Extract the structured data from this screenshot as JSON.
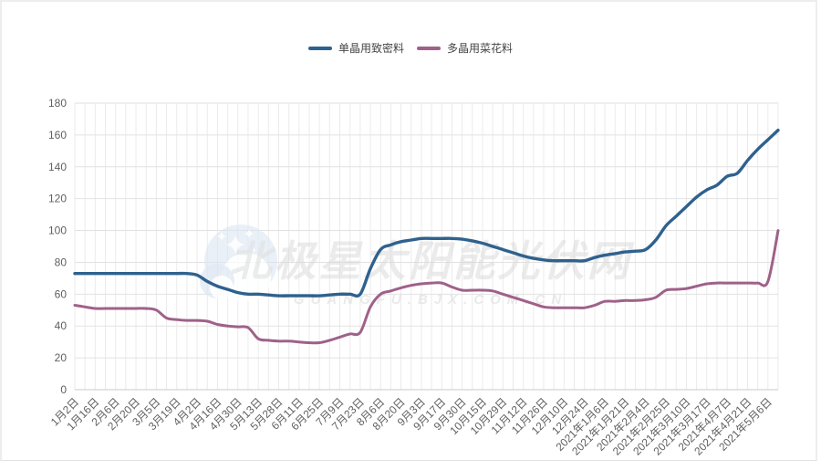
{
  "page": {
    "background": "#ffffff",
    "card_border_color": "#ededed"
  },
  "legend": [
    {
      "label": "单晶用致密料",
      "color": "#2f618e"
    },
    {
      "label": "多晶用菜花料",
      "color": "#9f6189"
    }
  ],
  "watermark": {
    "logo": "polar-star-cloud-logo",
    "title": "北极星太阳能光伏网",
    "subtitle": "GUANGFU.BJX.COM.CN",
    "color": "#d9d9d9",
    "logo_color": "#dbe5f1"
  },
  "axis": {
    "label_color": "#5f5f5f",
    "grid_color": "#e7e7e7",
    "axis_line_color": "#c9c9c9"
  },
  "chart_data": {
    "type": "line",
    "title": "",
    "xlabel": "",
    "ylabel": "",
    "ylim": [
      0,
      180
    ],
    "y_ticks": [
      0,
      20,
      40,
      60,
      80,
      100,
      120,
      140,
      160,
      180
    ],
    "grid": true,
    "legend_position": "top-center",
    "smooth": true,
    "label_every": 2,
    "x_tick_labels": [
      "1月2日",
      "1月16日",
      "2月6日",
      "2月20日",
      "3月5日",
      "3月19日",
      "4月2日",
      "4月16日",
      "4月30日",
      "5月13日",
      "5月28日",
      "6月11日",
      "6月25日",
      "7月9日",
      "7月23日",
      "8月6日",
      "8月20日",
      "9月3日",
      "9月17日",
      "9月30日",
      "10月15日",
      "10月29日",
      "11月12日",
      "11月26日",
      "12月10日",
      "12月24日",
      "2021年1月6日",
      "2021年1月21日",
      "2021年2月4日",
      "2021年2月25日",
      "2021年3月10日",
      "2021年3月17日",
      "2021年4月7日",
      "2021年4月21日",
      "2021年5月6日"
    ],
    "series": [
      {
        "name": "单晶用致密料",
        "color": "#2f618e",
        "values": [
          73,
          73,
          73,
          73,
          73,
          73,
          73,
          73,
          73,
          73,
          73,
          73,
          72,
          68,
          65,
          63,
          61,
          60,
          60,
          59.5,
          59,
          59,
          59,
          59,
          59,
          59.5,
          60,
          60,
          60,
          76,
          88,
          91,
          93,
          94,
          95,
          95,
          95,
          95,
          94.5,
          93.5,
          92,
          90,
          88,
          86,
          84,
          82.5,
          81.5,
          81,
          81,
          81,
          81,
          83,
          84.5,
          85.5,
          86.5,
          87,
          88,
          94,
          103,
          109,
          115,
          121,
          125.5,
          128.5,
          134,
          136,
          144,
          151,
          157,
          163
        ]
      },
      {
        "name": "多晶用菜花料",
        "color": "#9f6189",
        "values": [
          53,
          52,
          51,
          51,
          51,
          51,
          51,
          51,
          50,
          45,
          44,
          43.5,
          43.5,
          43,
          41,
          40,
          39.5,
          39,
          32,
          31,
          30.5,
          30.5,
          30,
          29.5,
          29.5,
          31,
          33,
          35,
          36,
          52,
          60,
          62,
          64,
          65.5,
          66.5,
          67,
          67,
          64.5,
          62.5,
          62.5,
          62.5,
          62,
          60,
          58,
          56,
          54,
          52,
          51.5,
          51.5,
          51.5,
          51.5,
          53,
          55.5,
          55.5,
          56,
          56,
          56.5,
          58,
          62.5,
          63,
          63.5,
          65,
          66.5,
          67,
          67,
          67,
          67,
          67,
          68,
          100
        ]
      }
    ]
  }
}
